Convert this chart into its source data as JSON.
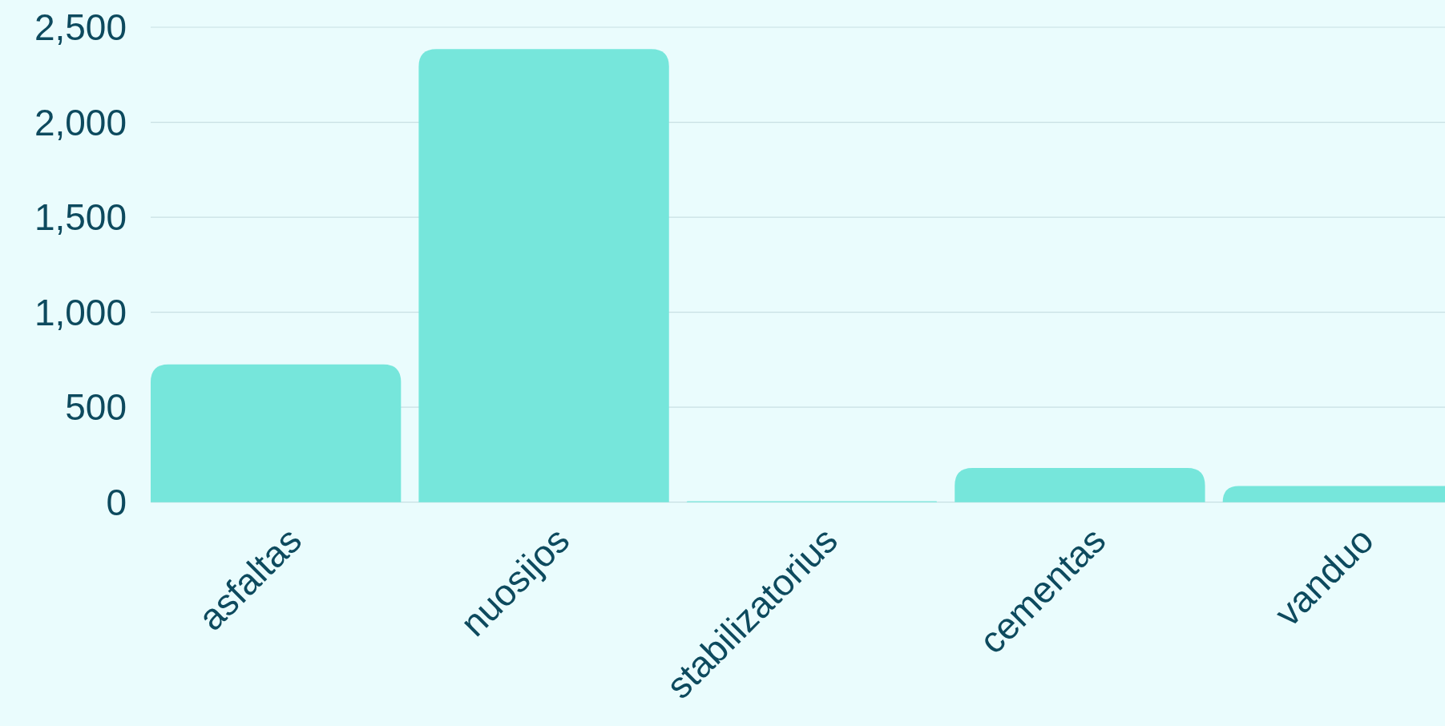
{
  "chart_data": {
    "type": "bar",
    "categories": [
      "asfaltas",
      "nuosijos",
      "stabilizatorius",
      "cementas",
      "vanduo"
    ],
    "values": [
      725,
      2385,
      5,
      180,
      85
    ],
    "color": "#76e6db",
    "ylim": [
      0,
      2500
    ],
    "yticks": [
      0,
      {
        "value": 500,
        "label": "500"
      },
      {
        "value": 1000,
        "label": "1,000"
      },
      {
        "value": 1500,
        "label": "1,500"
      },
      {
        "value": 2000,
        "label": "2,000"
      },
      {
        "value": 2500,
        "label": "2,500"
      }
    ],
    "grid": "y"
  }
}
